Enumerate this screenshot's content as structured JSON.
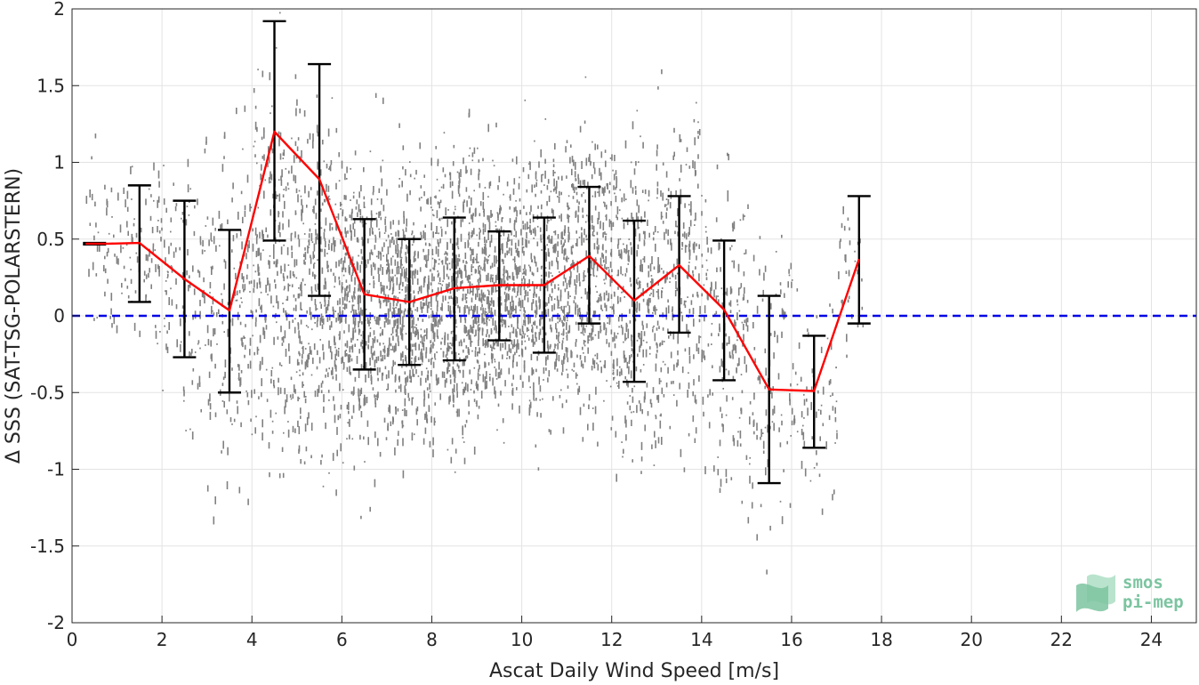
{
  "chart_data": {
    "type": "scatter",
    "title": "",
    "xlabel": "Ascat Daily Wind Speed [m/s]",
    "ylabel": "Δ SSS (SAT-TSG-POLARSTERN)",
    "xlim": [
      0,
      25
    ],
    "ylim": [
      -2,
      2
    ],
    "xticks": [
      "0",
      "2",
      "4",
      "6",
      "8",
      "10",
      "12",
      "14",
      "16",
      "18",
      "20",
      "22",
      "24"
    ],
    "yticks": [
      "-2",
      "-1.5",
      "-1",
      "-0.5",
      "0",
      "0.5",
      "1",
      "1.5",
      "2"
    ],
    "grid": true,
    "legend": "none",
    "series": [
      {
        "kind": "mean-line",
        "color": "#ff0000",
        "x": [
          0.3,
          0.8,
          1.5,
          2.5,
          3.5,
          4.5,
          5.5,
          6.5,
          7.5,
          8.5,
          9.5,
          10.5,
          11.5,
          12.5,
          13.5,
          14.5,
          15.5,
          16.5,
          17.5
        ],
        "y": [
          0.47,
          0.47,
          0.475,
          0.24,
          0.035,
          1.2,
          0.89,
          0.14,
          0.09,
          0.18,
          0.2,
          0.2,
          0.39,
          0.1,
          0.33,
          0.04,
          -0.48,
          -0.49,
          0.37
        ]
      },
      {
        "kind": "error-bars",
        "color": "#000000",
        "x": [
          0.5,
          1.5,
          2.5,
          3.5,
          4.5,
          5.5,
          6.5,
          7.5,
          8.5,
          9.5,
          10.5,
          11.5,
          12.5,
          13.5,
          14.5,
          15.5,
          16.5,
          17.5
        ],
        "lower": [
          0.465,
          0.09,
          -0.27,
          -0.5,
          0.49,
          0.13,
          -0.35,
          -0.32,
          -0.29,
          -0.16,
          -0.24,
          -0.05,
          -0.43,
          -0.11,
          -0.42,
          -1.09,
          -0.86,
          -0.05
        ],
        "upper": [
          0.475,
          0.85,
          0.75,
          0.56,
          1.92,
          1.64,
          0.63,
          0.5,
          0.64,
          0.55,
          0.64,
          0.84,
          0.62,
          0.78,
          0.49,
          0.13,
          -0.13,
          0.78
        ]
      },
      {
        "kind": "reference-line",
        "color": "#0000e6",
        "y": 0
      },
      {
        "kind": "raw-points",
        "color": "#808080",
        "bins": [
          {
            "x": [
              0.3,
              1.0
            ],
            "mean": 0.45,
            "sd": 0.3,
            "n": 40
          },
          {
            "x": [
              1.0,
              2.0
            ],
            "mean": 0.45,
            "sd": 0.3,
            "n": 80
          },
          {
            "x": [
              2.0,
              3.0
            ],
            "mean": 0.25,
            "sd": 0.45,
            "n": 110
          },
          {
            "x": [
              3.0,
              4.0
            ],
            "mean": 0.05,
            "sd": 0.55,
            "n": 160
          },
          {
            "x": [
              4.0,
              5.0
            ],
            "mean": 0.3,
            "sd": 0.6,
            "n": 260
          },
          {
            "x": [
              5.0,
              6.0
            ],
            "mean": 0.2,
            "sd": 0.55,
            "n": 330
          },
          {
            "x": [
              6.0,
              7.0
            ],
            "mean": 0.1,
            "sd": 0.45,
            "n": 420
          },
          {
            "x": [
              7.0,
              8.0
            ],
            "mean": 0.08,
            "sd": 0.42,
            "n": 460
          },
          {
            "x": [
              8.0,
              9.0
            ],
            "mean": 0.15,
            "sd": 0.45,
            "n": 470
          },
          {
            "x": [
              9.0,
              10.0
            ],
            "mean": 0.2,
            "sd": 0.4,
            "n": 450
          },
          {
            "x": [
              10.0,
              11.0
            ],
            "mean": 0.2,
            "sd": 0.42,
            "n": 420
          },
          {
            "x": [
              11.0,
              12.0
            ],
            "mean": 0.3,
            "sd": 0.45,
            "n": 360
          },
          {
            "x": [
              12.0,
              13.0
            ],
            "mean": 0.1,
            "sd": 0.5,
            "n": 300
          },
          {
            "x": [
              13.0,
              14.0
            ],
            "mean": 0.25,
            "sd": 0.5,
            "n": 230
          },
          {
            "x": [
              14.0,
              15.0
            ],
            "mean": 0.0,
            "sd": 0.5,
            "n": 160
          },
          {
            "x": [
              15.0,
              16.0
            ],
            "mean": -0.4,
            "sd": 0.55,
            "n": 100
          },
          {
            "x": [
              16.0,
              17.0
            ],
            "mean": -0.5,
            "sd": 0.35,
            "n": 70
          },
          {
            "x": [
              17.0,
              17.6
            ],
            "mean": 0.35,
            "sd": 0.3,
            "n": 30
          }
        ]
      }
    ]
  },
  "logo": {
    "line1": "smos",
    "line2": "pi-mep",
    "color": "#7cc4a0"
  }
}
